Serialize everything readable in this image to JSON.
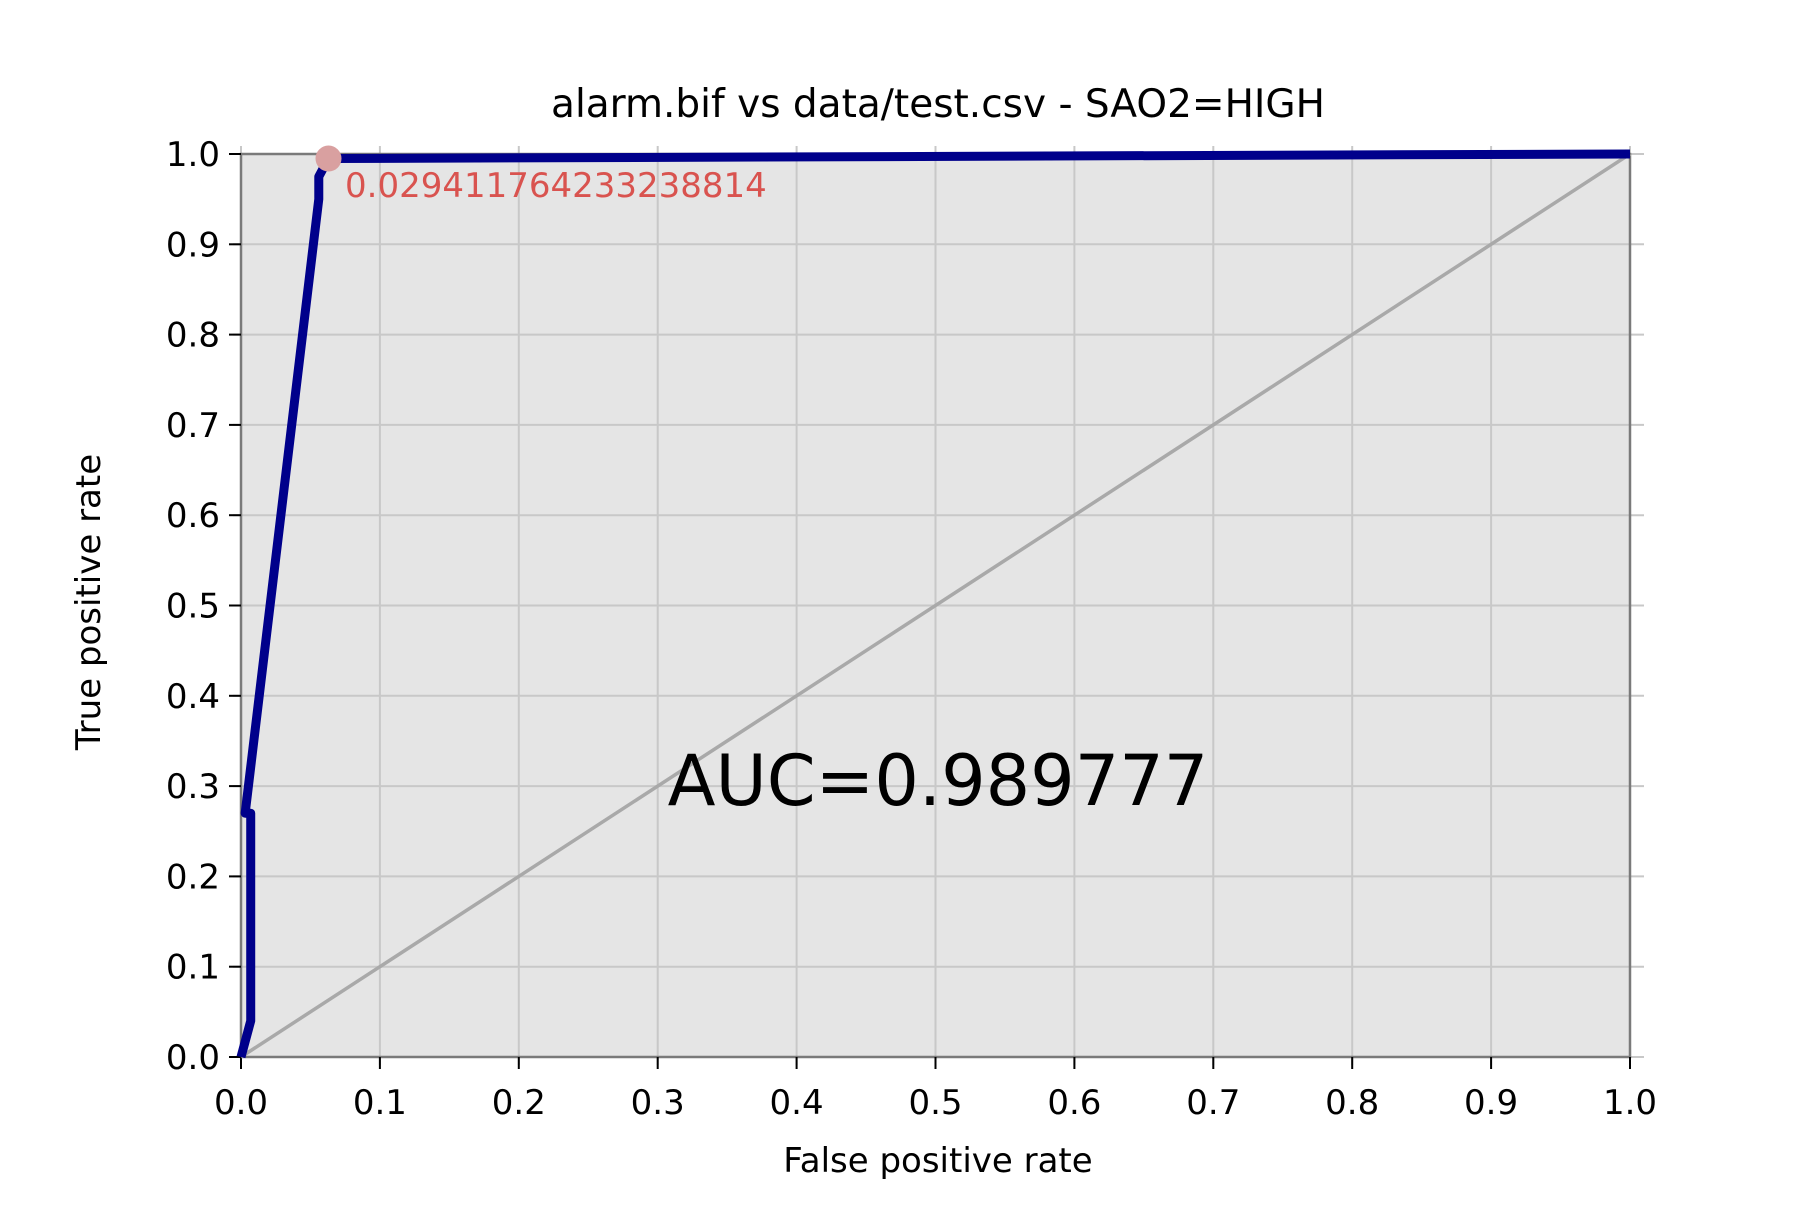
{
  "chart_data": {
    "type": "line",
    "title": "alarm.bif vs data/test.csv - SAO2=HIGH",
    "xlabel": "False positive rate",
    "ylabel": "True positive rate",
    "xlim": [
      0,
      1
    ],
    "ylim": [
      0,
      1
    ],
    "xticks": [
      "0.0",
      "0.1",
      "0.2",
      "0.3",
      "0.4",
      "0.5",
      "0.6",
      "0.7",
      "0.8",
      "0.9",
      "1.0"
    ],
    "yticks": [
      "0.0",
      "0.1",
      "0.2",
      "0.3",
      "0.4",
      "0.5",
      "0.6",
      "0.7",
      "0.8",
      "0.9",
      "1.0"
    ],
    "grid": true,
    "series": [
      {
        "color": "#00008b",
        "x": [
          0.0,
          0.007,
          0.007,
          0.003,
          0.056,
          0.056,
          0.063,
          1.0
        ],
        "y": [
          0.0,
          0.04,
          0.27,
          0.27,
          0.95,
          0.975,
          0.995,
          1.0
        ]
      },
      {
        "color": "#a9a9a9",
        "x": [
          0.0,
          1.0
        ],
        "y": [
          0.0,
          1.0
        ]
      }
    ],
    "highlight_point": {
      "x": 0.063,
      "y": 0.995,
      "label": "0.029411764233238814",
      "color": "#d9a0a0",
      "label_color": "#d9534f"
    },
    "annotation": "AUC=0.989777",
    "background_color": "#e5e5e5"
  }
}
